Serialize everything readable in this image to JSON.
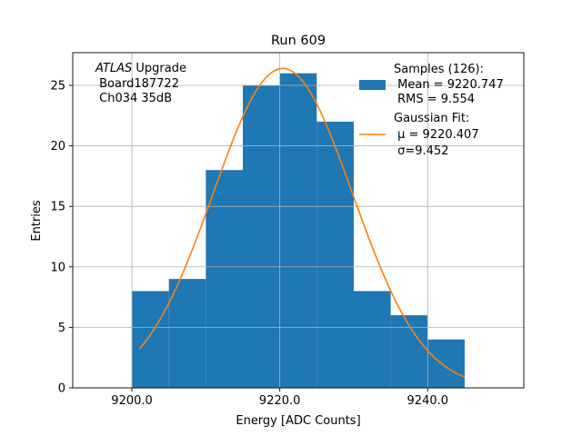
{
  "chart_data": {
    "type": "bar",
    "title": "Run 609",
    "xlabel": "Energy [ADC Counts]",
    "ylabel": "Entries",
    "xlim": [
      9192,
      9253
    ],
    "ylim": [
      0,
      27.7
    ],
    "grid": true,
    "x_ticks": [
      "9200.0",
      "9220.0",
      "9240.0"
    ],
    "x_tick_values": [
      9200,
      9220,
      9240
    ],
    "y_ticks": [
      "0",
      "5",
      "10",
      "15",
      "20",
      "25"
    ],
    "y_tick_values": [
      0,
      5,
      10,
      15,
      20,
      25
    ],
    "annotation": {
      "italic": "ATLAS",
      "rest": " Upgrade",
      "line2": " Board187722",
      "line3": " Ch034 35dB"
    },
    "legend_position": "top-right",
    "histogram": {
      "color": "#1f77b4",
      "bin_edges": [
        9200,
        9205,
        9210,
        9215,
        9220,
        9225,
        9230,
        9235,
        9240,
        9245
      ],
      "values": [
        8,
        9,
        18,
        25,
        26,
        22,
        8,
        6,
        4
      ],
      "legend": [
        "Samples (126):",
        " Mean = 9220.747",
        " RMS = 9.554"
      ]
    },
    "fit": {
      "color": "#ff7f0e",
      "amplitude": 26.4,
      "mu": 9220.407,
      "sigma": 9.452,
      "x_range": [
        9201,
        9245
      ],
      "legend": [
        "Gaussian Fit:",
        " μ = 9220.407",
        " σ=9.452"
      ]
    }
  }
}
